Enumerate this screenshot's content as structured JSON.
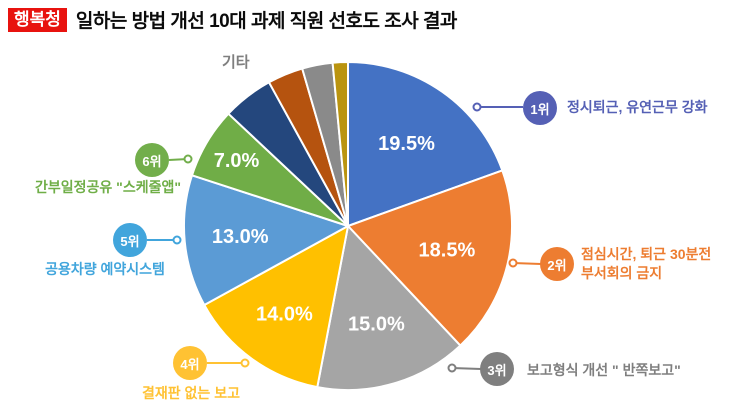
{
  "header": {
    "badge": "행복청",
    "badge_color": "#E8130F",
    "title": "일하는 방법 개선 10대 과제 직원 선호도 조사 결과"
  },
  "chart_data": {
    "type": "pie",
    "title": "일하는 방법 개선 10대 과제 직원 선호도 조사 결과",
    "start_angle_deg": 0,
    "direction": "clockwise",
    "legend_position": "callouts",
    "etc_label": "기타",
    "slices": [
      {
        "rank": "1위",
        "name": "정시퇴근, 유연근무 강화",
        "value": 19.5,
        "color": "#4472C4"
      },
      {
        "rank": "2위",
        "name": "점심시간, 퇴근 30분전 부서회의 금지",
        "value": 18.5,
        "color": "#ED7D31"
      },
      {
        "rank": "3위",
        "name": "보고형식 개선 \" 반쪽보고\"",
        "value": 15.0,
        "color": "#A5A5A5"
      },
      {
        "rank": "4위",
        "name": "결재판 없는 보고",
        "value": 14.0,
        "color": "#FFC000"
      },
      {
        "rank": "5위",
        "name": "공용차량 예약시스템",
        "value": 13.0,
        "color": "#5B9BD5"
      },
      {
        "rank": "6위",
        "name": "간부일정공유 \"스케줄앱\"",
        "value": 7.0,
        "color": "#70AD47"
      },
      {
        "group": "기타",
        "name": "기타",
        "value": 5.0,
        "color": "#24477D"
      },
      {
        "group": "기타",
        "name": "기타",
        "value": 3.5,
        "color": "#B5530F"
      },
      {
        "group": "기타",
        "name": "기타",
        "value": 3.0,
        "color": "#8A8A8A"
      },
      {
        "group": "기타",
        "name": "기타",
        "value": 1.5,
        "color": "#BA9410"
      }
    ],
    "callouts": [
      {
        "rank": "1위",
        "label": "정시퇴근, 유연근무 강화",
        "badge_color": "#5560B5",
        "text_color": "#5560B5"
      },
      {
        "rank": "2위",
        "label": "점심시간, 퇴근 30분전\n부서회의 금지",
        "badge_color": "#ED7D31",
        "text_color": "#ED7D31"
      },
      {
        "rank": "3위",
        "label": "보고형식 개선 \" 반쪽보고\"",
        "badge_color": "#7F7F7F",
        "text_color": "#7F7F7F"
      },
      {
        "rank": "4위",
        "label": "결재판 없는 보고",
        "badge_color": "#FFC233",
        "text_color": "#FFC233"
      },
      {
        "rank": "5위",
        "label": "공용차량 예약시스템",
        "badge_color": "#41A5DC",
        "text_color": "#41A5DC"
      },
      {
        "rank": "6위",
        "label": "간부일정공유 \"스케줄앱\"",
        "badge_color": "#72AE4B",
        "text_color": "#6FAE47"
      }
    ]
  }
}
